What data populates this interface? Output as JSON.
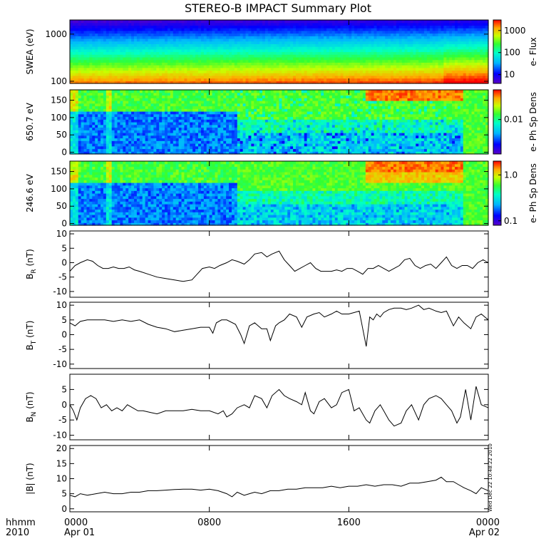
{
  "title": "STEREO-B IMPACT Summary Plot",
  "time_axis": {
    "label_line1": "hhmm",
    "label_line2": "2010",
    "ticks": [
      {
        "hour": 0,
        "line1": "0000",
        "line2": "Apr 01"
      },
      {
        "hour": 8,
        "line1": "0800",
        "line2": ""
      },
      {
        "hour": 16,
        "line1": "1600",
        "line2": ""
      },
      {
        "hour": 24,
        "line1": "0000",
        "line2": "Apr 02"
      }
    ],
    "range_hours": [
      0,
      24
    ]
  },
  "stamp": "Wed Dec 22 10:48:22 2010",
  "chart_data": [
    {
      "type": "heatmap",
      "panel": "swea",
      "ylabel": "SWEA (eV)",
      "yscale": "log",
      "ylim": [
        90,
        2000
      ],
      "yticks": [
        {
          "v": 100,
          "label": "100"
        },
        {
          "v": 1000,
          "label": "1000"
        }
      ],
      "colorbar": {
        "label": "e- Flux",
        "scale": "log",
        "range": [
          4,
          3000
        ],
        "ticks": [
          {
            "v": 10,
            "label": "10"
          },
          {
            "v": 100,
            "label": "100"
          },
          {
            "v": 1000,
            "label": "1000"
          }
        ]
      }
    },
    {
      "type": "heatmap",
      "panel": "pad650",
      "ylabel": "650.7 eV",
      "yscale": "linear",
      "ylim": [
        -5,
        180
      ],
      "yticks": [
        {
          "v": 0,
          "label": "0"
        },
        {
          "v": 50,
          "label": "50"
        },
        {
          "v": 100,
          "label": "100"
        },
        {
          "v": 150,
          "label": "150"
        }
      ],
      "colorbar": {
        "label": "e- Ph Sp Dens",
        "scale": "log",
        "range": [
          0.002,
          0.04
        ],
        "ticks": [
          {
            "v": 0.01,
            "label": "0.01"
          }
        ]
      }
    },
    {
      "type": "heatmap",
      "panel": "pad246",
      "ylabel": "246.6 eV",
      "yscale": "linear",
      "ylim": [
        -5,
        180
      ],
      "yticks": [
        {
          "v": 0,
          "label": "0"
        },
        {
          "v": 50,
          "label": "50"
        },
        {
          "v": 100,
          "label": "100"
        },
        {
          "v": 150,
          "label": "150"
        }
      ],
      "colorbar": {
        "label": "e- Ph Sp Dens",
        "scale": "log",
        "range": [
          0.08,
          2
        ],
        "ticks": [
          {
            "v": 0.1,
            "label": "0.1"
          },
          {
            "v": 1.0,
            "label": "1.0"
          }
        ]
      }
    },
    {
      "type": "line",
      "panel": "br",
      "ylabel": "B",
      "ylabel_sub": "R",
      "ylabel_unit": " (nT)",
      "ylim": [
        -12,
        11
      ],
      "yticks": [
        -10,
        -5,
        0,
        5,
        10
      ],
      "x": [
        0,
        0.3,
        0.6,
        1.0,
        1.3,
        1.6,
        1.9,
        2.2,
        2.5,
        2.8,
        3.1,
        3.4,
        3.7,
        4.0,
        4.5,
        5.0,
        5.5,
        6.0,
        6.5,
        7.0,
        7.3,
        7.6,
        8.0,
        8.3,
        8.6,
        9.0,
        9.3,
        9.6,
        10.0,
        10.3,
        10.6,
        11.0,
        11.3,
        11.6,
        12.0,
        12.3,
        12.6,
        12.9,
        13.2,
        13.5,
        13.8,
        14.1,
        14.4,
        14.7,
        15.0,
        15.3,
        15.6,
        15.9,
        16.2,
        16.5,
        16.8,
        17.1,
        17.4,
        17.7,
        18.0,
        18.3,
        18.6,
        18.9,
        19.2,
        19.5,
        19.8,
        20.1,
        20.4,
        20.7,
        21.0,
        21.3,
        21.6,
        21.9,
        22.2,
        22.5,
        22.8,
        23.1,
        23.4,
        23.7,
        24.0
      ],
      "y": [
        -3,
        -1,
        0,
        1,
        0.5,
        -1,
        -2,
        -2,
        -1.5,
        -2,
        -2,
        -1.5,
        -2.5,
        -3,
        -4,
        -5,
        -5.5,
        -6,
        -6.5,
        -6,
        -4,
        -2,
        -1.5,
        -2,
        -1,
        0,
        1,
        0.5,
        -0.5,
        1,
        3,
        3.5,
        2,
        3,
        4,
        1,
        -1,
        -3,
        -2,
        -1,
        0,
        -2,
        -3,
        -3,
        -3,
        -2.5,
        -3,
        -2,
        -2,
        -3,
        -4,
        -2,
        -2,
        -1,
        -2,
        -3,
        -2,
        -1,
        1,
        1.5,
        -1,
        -2,
        -1,
        -0.5,
        -2,
        0,
        2,
        -1,
        -2,
        -1,
        -1,
        -2,
        0,
        1,
        0
      ]
    },
    {
      "type": "line",
      "panel": "bt",
      "ylabel": "B",
      "ylabel_sub": "T",
      "ylabel_unit": " (nT)",
      "ylim": [
        -11.5,
        11
      ],
      "yticks": [
        -10,
        -5,
        0,
        5,
        10
      ],
      "x": [
        0,
        0.3,
        0.6,
        1.0,
        1.5,
        2.0,
        2.5,
        3.0,
        3.5,
        4.0,
        4.5,
        5.0,
        5.5,
        6.0,
        6.5,
        7.0,
        7.5,
        8.0,
        8.2,
        8.4,
        8.7,
        9.0,
        9.5,
        9.8,
        10.0,
        10.3,
        10.6,
        11.0,
        11.3,
        11.5,
        11.8,
        12.0,
        12.3,
        12.6,
        13.0,
        13.3,
        13.6,
        14.0,
        14.3,
        14.6,
        15.0,
        15.3,
        15.6,
        16.0,
        16.3,
        16.6,
        17.0,
        17.2,
        17.4,
        17.6,
        17.8,
        18.0,
        18.3,
        18.6,
        19.0,
        19.3,
        19.6,
        20.0,
        20.3,
        20.6,
        21.0,
        21.3,
        21.6,
        22.0,
        22.3,
        22.6,
        23.0,
        23.3,
        23.6,
        24.0
      ],
      "y": [
        4,
        3,
        4.5,
        5,
        5,
        5,
        4.5,
        5,
        4.5,
        5,
        3.5,
        2.5,
        2,
        1,
        1.5,
        2,
        2.5,
        2.5,
        0.5,
        4,
        5,
        5,
        3.5,
        0,
        -3,
        3,
        4,
        2,
        2,
        -2,
        3,
        4,
        5,
        7,
        6,
        2.5,
        6,
        7,
        7.5,
        6,
        7,
        8,
        7,
        7,
        7.5,
        8,
        -4,
        6,
        5,
        7,
        6,
        7.5,
        8.5,
        9,
        9,
        8.5,
        9,
        10,
        8.5,
        9,
        8,
        7.5,
        8,
        3,
        6,
        4,
        2,
        6,
        7,
        5
      ]
    },
    {
      "type": "line",
      "panel": "bn",
      "ylabel": "B",
      "ylabel_sub": "N",
      "ylabel_unit": " (nT)",
      "ylim": [
        -11.5,
        10
      ],
      "yticks": [
        -10,
        -5,
        0,
        5
      ],
      "x": [
        0,
        0.2,
        0.4,
        0.6,
        0.9,
        1.2,
        1.5,
        1.8,
        2.1,
        2.4,
        2.7,
        3.0,
        3.3,
        3.6,
        3.9,
        4.2,
        4.6,
        5.0,
        5.5,
        6.0,
        6.5,
        7.0,
        7.5,
        8.0,
        8.5,
        8.8,
        9.0,
        9.3,
        9.6,
        10.0,
        10.3,
        10.6,
        11.0,
        11.3,
        11.6,
        12.0,
        12.3,
        12.6,
        13.0,
        13.3,
        13.5,
        13.8,
        14.0,
        14.3,
        14.6,
        15.0,
        15.3,
        15.6,
        16.0,
        16.3,
        16.6,
        17.0,
        17.2,
        17.5,
        17.8,
        18.0,
        18.3,
        18.6,
        19.0,
        19.3,
        19.6,
        20.0,
        20.3,
        20.6,
        21.0,
        21.3,
        21.6,
        21.9,
        22.2,
        22.4,
        22.7,
        23.0,
        23.3,
        23.6,
        24.0
      ],
      "y": [
        0,
        -2,
        -5,
        -1,
        2,
        3,
        2,
        -1,
        0,
        -2,
        -1,
        -2,
        0,
        -1,
        -2,
        -2,
        -2.5,
        -3,
        -2,
        -2,
        -2,
        -1.5,
        -2,
        -2,
        -3,
        -2,
        -4,
        -3,
        -1,
        0,
        -1,
        3,
        2,
        -1,
        3,
        5,
        3,
        2,
        1,
        0,
        4,
        -2,
        -3,
        1,
        2,
        -1,
        0,
        4,
        5,
        -2,
        -1,
        -5,
        -6,
        -2,
        0,
        -2,
        -5,
        -7,
        -6,
        -2,
        0,
        -5,
        0,
        2,
        3,
        2,
        0,
        -2,
        -6,
        -4,
        5,
        -5,
        6,
        0,
        -1
      ]
    },
    {
      "type": "line",
      "panel": "bmag",
      "ylabel": "|B| (nT)",
      "ylim": [
        -1,
        21
      ],
      "yticks": [
        0,
        5,
        10,
        15,
        20
      ],
      "x": [
        0,
        0.3,
        0.6,
        1.0,
        1.5,
        2.0,
        2.5,
        3.0,
        3.5,
        4.0,
        4.5,
        5.0,
        5.5,
        6.0,
        6.5,
        7.0,
        7.5,
        8.0,
        8.5,
        9.0,
        9.3,
        9.6,
        10.0,
        10.3,
        10.6,
        11.0,
        11.5,
        12.0,
        12.5,
        13.0,
        13.5,
        14.0,
        14.5,
        15.0,
        15.5,
        16.0,
        16.5,
        17.0,
        17.5,
        18.0,
        18.5,
        19.0,
        19.5,
        20.0,
        20.5,
        21.0,
        21.3,
        21.6,
        22.0,
        22.3,
        22.6,
        23.0,
        23.3,
        23.6,
        24.0
      ],
      "y": [
        4.5,
        4,
        5,
        4.5,
        5,
        5.5,
        5,
        5,
        5.5,
        5.5,
        6,
        6,
        6.2,
        6.4,
        6.5,
        6.5,
        6.2,
        6.5,
        6,
        5,
        4,
        5.5,
        4.5,
        5,
        5.5,
        5,
        6,
        6,
        6.5,
        6.5,
        7,
        7,
        7,
        7.5,
        7,
        7.5,
        7.5,
        8,
        7.5,
        8,
        8,
        7.5,
        8.5,
        8.5,
        9,
        9.5,
        10.5,
        9,
        9,
        8,
        7,
        6,
        5,
        7,
        6
      ]
    }
  ]
}
